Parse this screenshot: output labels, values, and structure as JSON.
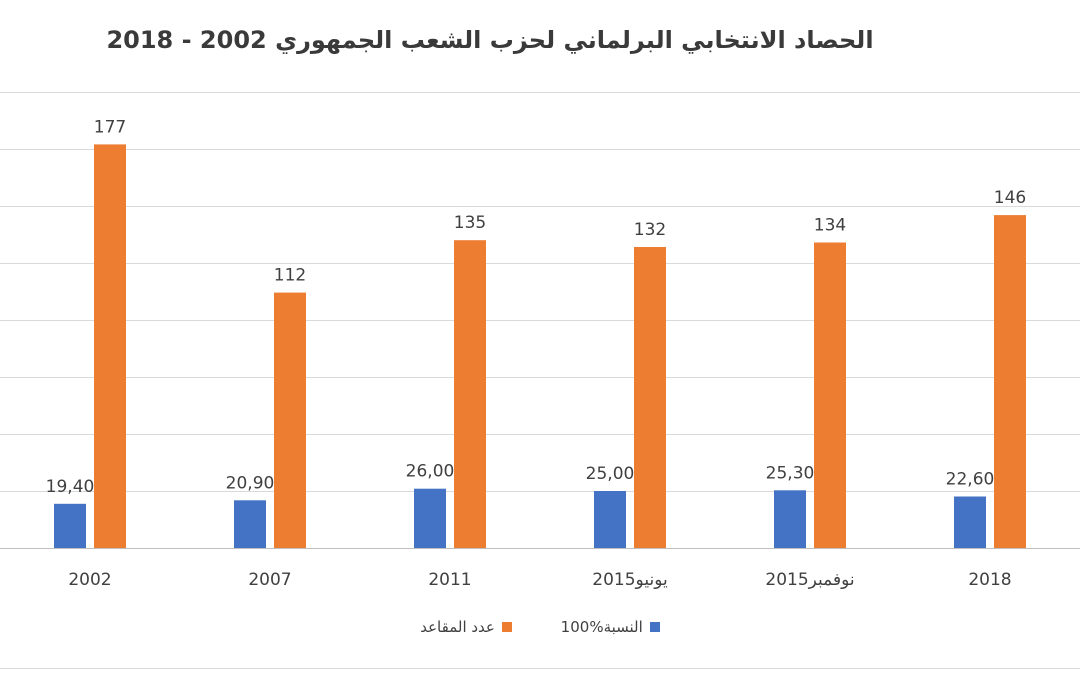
{
  "chart_data": {
    "type": "bar",
    "title": "الحصاد الانتخابي البرلماني لحزب الشعب الجمهوري 2002 - 2018",
    "categories": [
      "2002",
      "2007",
      "2011",
      "يونيو2015",
      "نوفمبر2015",
      "2018"
    ],
    "series": [
      {
        "name": "النسبة%100",
        "color": "#4472C4",
        "values": [
          19.4,
          20.9,
          26.0,
          25.0,
          25.3,
          22.6
        ],
        "labels": [
          "19,40",
          "20,90",
          "26,00",
          "25,00",
          "25,30",
          "22,60"
        ]
      },
      {
        "name": "عدد المقاعد",
        "color": "#ED7D31",
        "values": [
          177,
          112,
          135,
          132,
          134,
          146
        ],
        "labels": [
          "177",
          "112",
          "135",
          "132",
          "134",
          "146"
        ]
      }
    ],
    "ylim": [
      0,
      200
    ],
    "grid": true,
    "legend_position": "bottom"
  }
}
